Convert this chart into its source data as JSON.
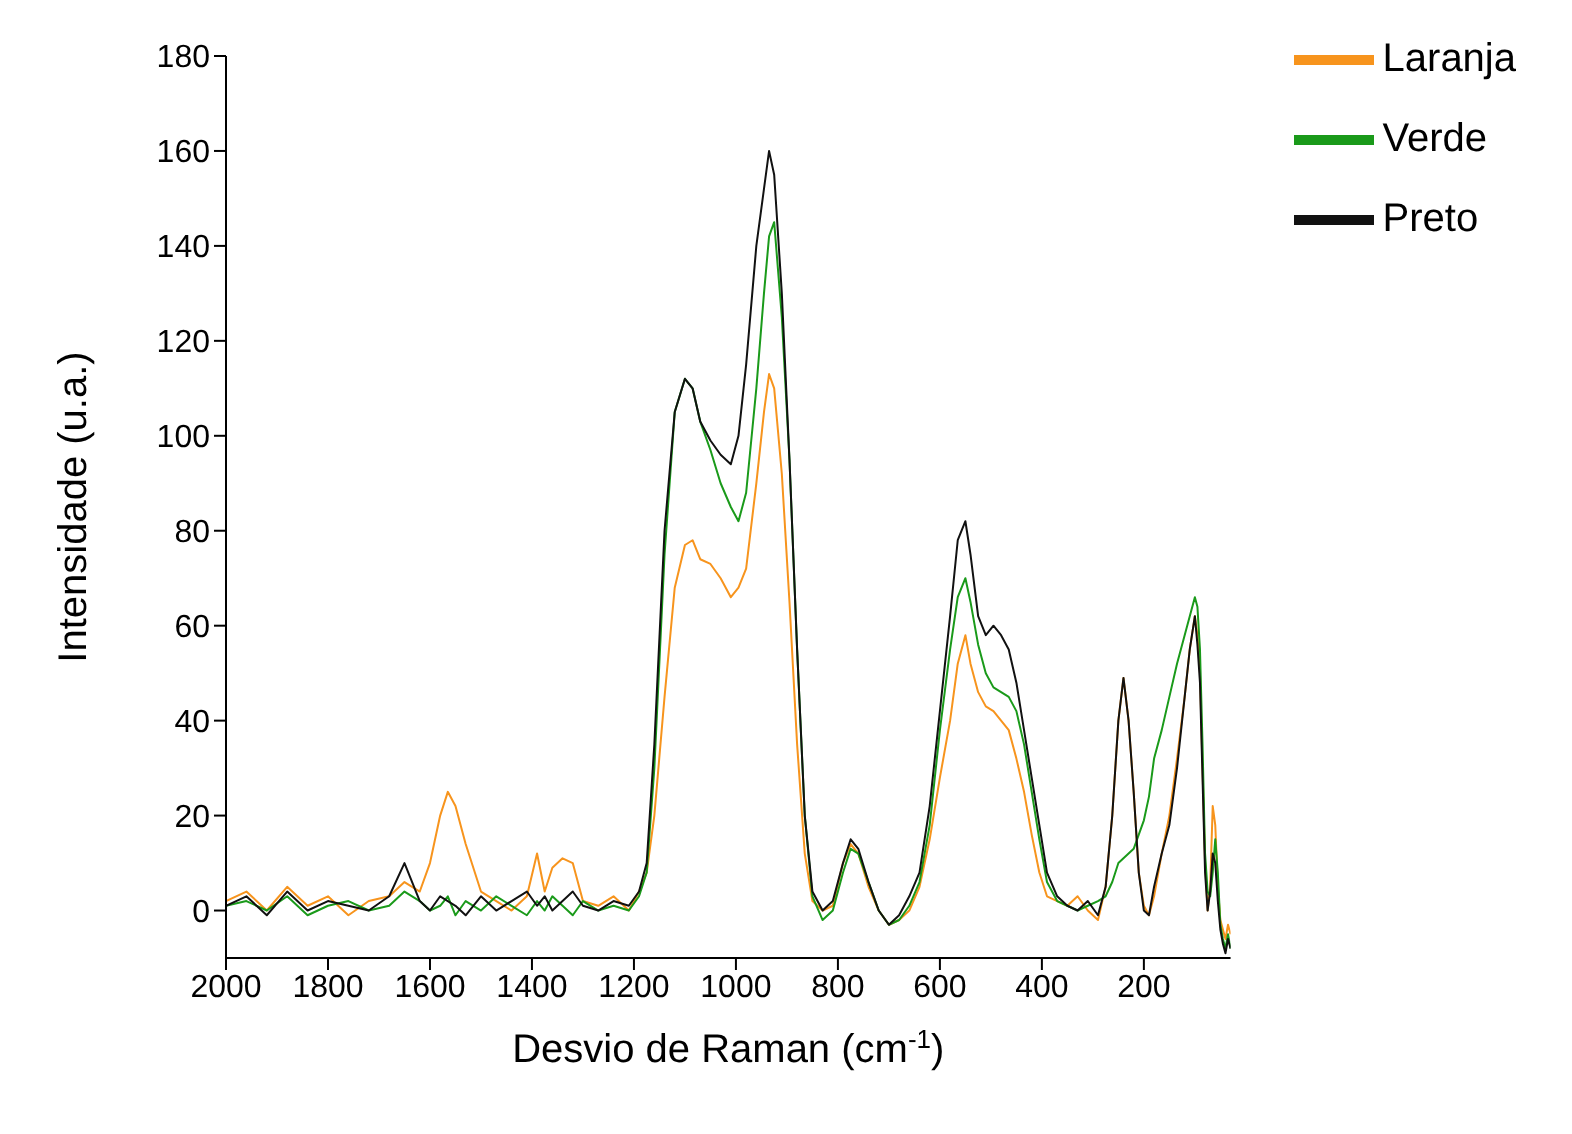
{
  "chart_data": {
    "type": "line",
    "xlabel": "Desvio de Raman (cm$^{-1}$)",
    "ylabel": "Intensidade (u.a.)",
    "x": [
      2000,
      1960,
      1920,
      1880,
      1840,
      1800,
      1760,
      1720,
      1680,
      1650,
      1620,
      1600,
      1580,
      1565,
      1550,
      1530,
      1500,
      1470,
      1440,
      1410,
      1390,
      1375,
      1360,
      1340,
      1320,
      1300,
      1270,
      1240,
      1210,
      1190,
      1175,
      1160,
      1140,
      1120,
      1100,
      1085,
      1070,
      1050,
      1030,
      1010,
      995,
      980,
      960,
      945,
      935,
      925,
      910,
      895,
      880,
      865,
      850,
      830,
      810,
      790,
      775,
      760,
      740,
      720,
      700,
      680,
      660,
      640,
      620,
      600,
      580,
      565,
      550,
      540,
      525,
      510,
      495,
      480,
      465,
      450,
      435,
      420,
      405,
      390,
      370,
      350,
      330,
      310,
      290,
      275,
      262,
      250,
      240,
      230,
      220,
      210,
      200,
      190,
      180,
      165,
      150,
      135,
      120,
      110,
      100,
      95,
      90,
      85,
      80,
      75,
      70,
      65,
      60,
      55,
      50,
      45,
      40,
      35,
      30
    ],
    "series": [
      {
        "name": "Laranja",
        "color": "#f7941d",
        "values": [
          2,
          4,
          0,
          5,
          1,
          3,
          -1,
          2,
          3,
          6,
          4,
          10,
          20,
          25,
          22,
          14,
          4,
          2,
          0,
          3,
          12,
          4,
          9,
          11,
          10,
          2,
          1,
          3,
          0,
          4,
          8,
          20,
          45,
          68,
          77,
          78,
          74,
          73,
          70,
          66,
          68,
          72,
          90,
          105,
          113,
          110,
          92,
          65,
          35,
          12,
          2,
          0,
          1,
          10,
          14,
          12,
          5,
          0,
          -3,
          -2,
          0,
          5,
          15,
          28,
          40,
          52,
          58,
          52,
          46,
          43,
          42,
          40,
          38,
          32,
          25,
          16,
          8,
          3,
          2,
          1,
          3,
          0,
          -2,
          5,
          20,
          40,
          49,
          40,
          25,
          8,
          1,
          -1,
          3,
          12,
          20,
          32,
          45,
          55,
          62,
          58,
          50,
          30,
          10,
          0,
          5,
          22,
          18,
          5,
          -2,
          -4,
          -6,
          -3,
          -5
        ]
      },
      {
        "name": "Verde",
        "color": "#1a9a1a",
        "values": [
          1,
          2,
          0,
          3,
          -1,
          1,
          2,
          0,
          1,
          4,
          2,
          0,
          1,
          3,
          -1,
          2,
          0,
          3,
          1,
          -1,
          2,
          0,
          3,
          1,
          -1,
          2,
          0,
          1,
          0,
          3,
          8,
          30,
          75,
          105,
          112,
          110,
          103,
          97,
          90,
          85,
          82,
          88,
          110,
          130,
          142,
          145,
          125,
          95,
          55,
          20,
          3,
          -2,
          0,
          8,
          13,
          12,
          6,
          0,
          -3,
          -2,
          1,
          6,
          18,
          38,
          55,
          66,
          70,
          65,
          56,
          50,
          47,
          46,
          45,
          42,
          35,
          25,
          15,
          6,
          2,
          1,
          0,
          1,
          2,
          3,
          6,
          10,
          11,
          12,
          13,
          16,
          19,
          24,
          32,
          38,
          45,
          52,
          58,
          62,
          66,
          64,
          55,
          35,
          12,
          4,
          3,
          8,
          15,
          8,
          -3,
          -6,
          -8,
          -5,
          -8
        ]
      },
      {
        "name": "Preto",
        "color": "#111111",
        "values": [
          1,
          3,
          -1,
          4,
          0,
          2,
          1,
          0,
          3,
          10,
          2,
          0,
          3,
          2,
          1,
          -1,
          3,
          0,
          2,
          4,
          1,
          3,
          0,
          2,
          4,
          1,
          0,
          2,
          1,
          4,
          10,
          35,
          80,
          105,
          112,
          110,
          103,
          99,
          96,
          94,
          100,
          115,
          140,
          152,
          160,
          155,
          130,
          95,
          55,
          20,
          4,
          0,
          2,
          10,
          15,
          13,
          6,
          0,
          -3,
          -1,
          3,
          8,
          22,
          42,
          62,
          78,
          82,
          75,
          62,
          58,
          60,
          58,
          55,
          48,
          38,
          28,
          18,
          8,
          3,
          1,
          0,
          2,
          -1,
          5,
          20,
          40,
          49,
          40,
          25,
          8,
          0,
          -1,
          5,
          12,
          18,
          30,
          45,
          55,
          62,
          56,
          48,
          28,
          8,
          0,
          4,
          12,
          10,
          2,
          -4,
          -7,
          -9,
          -6,
          -8
        ]
      }
    ],
    "xlim": [
      2000,
      30
    ],
    "xticks": [
      2000,
      1800,
      1600,
      1400,
      1200,
      1000,
      800,
      600,
      400,
      200
    ],
    "ylim": [
      -10,
      180
    ],
    "yticks": [
      0,
      20,
      40,
      60,
      80,
      100,
      120,
      140,
      160,
      180
    ],
    "grid": false,
    "legend": "top right",
    "marker": "none",
    "line_style": "solid"
  }
}
